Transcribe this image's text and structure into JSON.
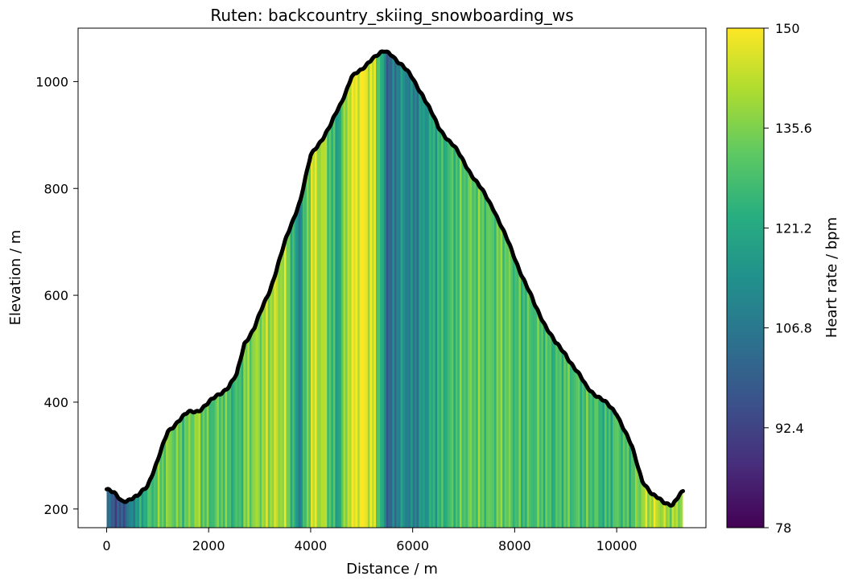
{
  "chart_data": {
    "type": "area",
    "title": "Ruten: backcountry_skiing_snowboarding_ws",
    "xlabel": "Distance / m",
    "ylabel": "Elevation / m",
    "xlim": [
      -560,
      11750
    ],
    "ylim": [
      165,
      1100
    ],
    "x_ticks": [
      0,
      2000,
      4000,
      6000,
      8000,
      10000
    ],
    "y_ticks": [
      200,
      400,
      600,
      800,
      1000
    ],
    "grid": false,
    "colorbar": {
      "label": "Heart rate / bpm",
      "colormap": "viridis",
      "range": [
        78,
        150
      ],
      "ticks": [
        "150",
        "135.6",
        "121.2",
        "106.8",
        "92.4",
        "78"
      ]
    },
    "line_color": "#000000",
    "elevation_profile": {
      "distance": [
        0,
        150,
        300,
        450,
        600,
        800,
        1000,
        1200,
        1400,
        1600,
        1800,
        2000,
        2200,
        2400,
        2550,
        2700,
        2900,
        3200,
        3500,
        3800,
        4000,
        4200,
        4400,
        4600,
        4800,
        5000,
        5200,
        5300,
        5450,
        5600,
        5800,
        6000,
        6200,
        6500,
        6800,
        7200,
        7600,
        8000,
        8400,
        8800,
        9000,
        9400,
        9700,
        10000,
        10300,
        10500,
        10700,
        10900,
        11100,
        11300
      ],
      "elevation": [
        237,
        228,
        216,
        218,
        222,
        245,
        290,
        345,
        365,
        380,
        385,
        398,
        415,
        430,
        450,
        510,
        540,
        610,
        700,
        780,
        860,
        890,
        920,
        960,
        1010,
        1020,
        1045,
        1050,
        1055,
        1050,
        1030,
        1005,
        975,
        915,
        880,
        820,
        760,
        670,
        580,
        510,
        490,
        430,
        405,
        380,
        315,
        255,
        225,
        215,
        208,
        232
      ]
    },
    "heart_rate_samples": {
      "distance": [
        0,
        250,
        500,
        750,
        1000,
        1250,
        1500,
        1750,
        2000,
        2250,
        2500,
        2750,
        3000,
        3250,
        3500,
        3750,
        4000,
        4250,
        4500,
        4750,
        5000,
        5250,
        5500,
        5750,
        6000,
        6250,
        6500,
        6750,
        7000,
        7250,
        7500,
        7750,
        8000,
        8250,
        8500,
        8750,
        9000,
        9250,
        9500,
        9750,
        10000,
        10250,
        10500,
        10750,
        11000,
        11250
      ],
      "heart_rate": [
        102,
        95,
        112,
        125,
        132,
        135,
        130,
        138,
        128,
        133,
        124,
        136,
        138,
        141,
        140,
        110,
        144,
        140,
        118,
        147,
        149,
        142,
        100,
        114,
        108,
        118,
        124,
        127,
        131,
        132,
        130,
        134,
        128,
        128,
        130,
        126,
        130,
        128,
        130,
        124,
        130,
        127,
        140,
        143,
        138,
        140
      ]
    }
  }
}
